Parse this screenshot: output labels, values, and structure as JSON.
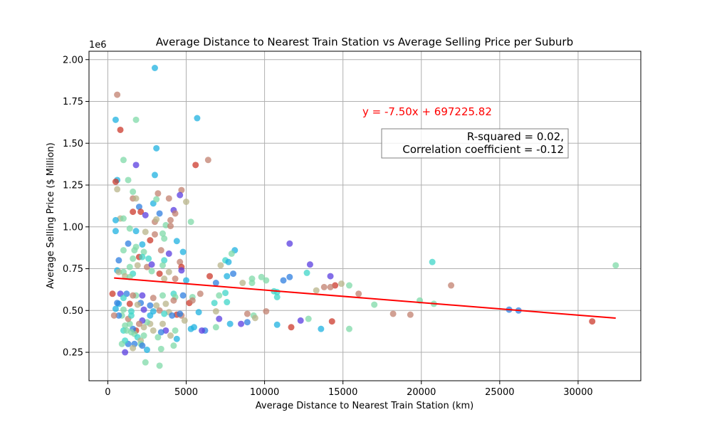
{
  "chart_data": {
    "type": "scatter",
    "title": "Average Distance to Nearest Train Station vs Average Selling Price per Suburb",
    "xlabel": "Average Distance to Nearest Train Station (km)",
    "ylabel": "Average Selling Price ($ Million)",
    "y_offset_label": "1e6",
    "xlim": [
      -1200,
      34000
    ],
    "ylim": [
      80000,
      2050000
    ],
    "x_ticks": [
      0,
      5000,
      10000,
      15000,
      20000,
      25000,
      30000
    ],
    "x_tick_labels": [
      "0",
      "5000",
      "10000",
      "15000",
      "20000",
      "25000",
      "30000"
    ],
    "y_ticks": [
      250000,
      500000,
      750000,
      1000000,
      1250000,
      1500000,
      1750000,
      2000000
    ],
    "y_tick_labels": [
      "0.25",
      "0.50",
      "0.75",
      "1.00",
      "1.25",
      "1.50",
      "1.75",
      "2.00"
    ],
    "grid": true,
    "regression": {
      "equation": "y = -7.50x + 697225.82",
      "slope": -7.5,
      "intercept": 697225.82,
      "x_range": [
        400,
        32400
      ],
      "color": "#ff0000"
    },
    "stats_box": {
      "line1": "R-squared = 0.02,",
      "line2": "Correlation coefficient = -0.12"
    },
    "palette": [
      "#5a3de0",
      "#2f7fe0",
      "#1fb2e0",
      "#3fd6c8",
      "#7fd9a8",
      "#b8b48a",
      "#c2806f",
      "#cc3a2c"
    ],
    "points": [
      [
        3000,
        1950000,
        2
      ],
      [
        600,
        1790000,
        6
      ],
      [
        500,
        1640000,
        2
      ],
      [
        1800,
        1640000,
        4
      ],
      [
        5700,
        1650000,
        2
      ],
      [
        800,
        1580000,
        7
      ],
      [
        3100,
        1470000,
        2
      ],
      [
        1000,
        1400000,
        4
      ],
      [
        6400,
        1400000,
        6
      ],
      [
        1800,
        1370000,
        0
      ],
      [
        5600,
        1370000,
        7
      ],
      [
        3000,
        1310000,
        2
      ],
      [
        600,
        1280000,
        2
      ],
      [
        500,
        1270000,
        7
      ],
      [
        1300,
        1280000,
        4
      ],
      [
        4700,
        1220000,
        6
      ],
      [
        600,
        1225000,
        5
      ],
      [
        1600,
        1210000,
        4
      ],
      [
        3200,
        1200000,
        6
      ],
      [
        4600,
        1190000,
        0
      ],
      [
        1600,
        1170000,
        6
      ],
      [
        1800,
        1170000,
        5
      ],
      [
        3900,
        1170000,
        6
      ],
      [
        5000,
        1150000,
        5
      ],
      [
        2900,
        1140000,
        2
      ],
      [
        3100,
        1165000,
        4
      ],
      [
        2000,
        1120000,
        1
      ],
      [
        1600,
        1090000,
        7
      ],
      [
        2100,
        1090000,
        7
      ],
      [
        2400,
        1070000,
        0
      ],
      [
        3300,
        1080000,
        1
      ],
      [
        4200,
        1100000,
        0
      ],
      [
        4300,
        1080000,
        6
      ],
      [
        800,
        1050000,
        5
      ],
      [
        1000,
        1050000,
        4
      ],
      [
        500,
        1040000,
        2
      ],
      [
        3000,
        1030000,
        6
      ],
      [
        3100,
        1045000,
        5
      ],
      [
        4000,
        1040000,
        6
      ],
      [
        5300,
        1030000,
        4
      ],
      [
        3700,
        1010000,
        4
      ],
      [
        4000,
        1005000,
        6
      ],
      [
        500,
        975000,
        2
      ],
      [
        1400,
        990000,
        4
      ],
      [
        1800,
        975000,
        2
      ],
      [
        2400,
        970000,
        5
      ],
      [
        3500,
        960000,
        4
      ],
      [
        3000,
        955000,
        6
      ],
      [
        4400,
        915000,
        2
      ],
      [
        2700,
        920000,
        7
      ],
      [
        3600,
        930000,
        4
      ],
      [
        1300,
        900000,
        1
      ],
      [
        2200,
        895000,
        2
      ],
      [
        1800,
        880000,
        4
      ],
      [
        1700,
        860000,
        4
      ],
      [
        2300,
        850000,
        4
      ],
      [
        3400,
        860000,
        6
      ],
      [
        3900,
        840000,
        0
      ],
      [
        4800,
        850000,
        2
      ],
      [
        8100,
        860000,
        2
      ],
      [
        11600,
        900000,
        0
      ],
      [
        1000,
        860000,
        4
      ],
      [
        700,
        800000,
        1
      ],
      [
        1600,
        810000,
        4
      ],
      [
        2000,
        820000,
        7
      ],
      [
        2200,
        820000,
        3
      ],
      [
        2600,
        810000,
        3
      ],
      [
        3600,
        800000,
        3
      ],
      [
        4600,
        790000,
        6
      ],
      [
        7500,
        800000,
        3
      ],
      [
        7700,
        790000,
        2
      ],
      [
        7900,
        840000,
        4
      ],
      [
        1400,
        760000,
        4
      ],
      [
        2500,
        760000,
        6
      ],
      [
        2800,
        775000,
        0
      ],
      [
        3300,
        720000,
        7
      ],
      [
        3500,
        770000,
        4
      ],
      [
        4700,
        760000,
        7
      ],
      [
        1900,
        770000,
        5
      ],
      [
        7200,
        770000,
        5
      ],
      [
        12900,
        775000,
        0
      ],
      [
        20700,
        790000,
        3
      ],
      [
        32400,
        770000,
        4
      ],
      [
        600,
        740000,
        2
      ],
      [
        700,
        730000,
        5
      ],
      [
        1000,
        730000,
        4
      ],
      [
        1600,
        720000,
        3
      ],
      [
        2800,
        735000,
        4
      ],
      [
        3900,
        730000,
        5
      ],
      [
        4700,
        740000,
        0
      ],
      [
        6500,
        705000,
        7
      ],
      [
        7600,
        705000,
        2
      ],
      [
        8000,
        720000,
        1
      ],
      [
        11600,
        700000,
        1
      ],
      [
        12700,
        725000,
        3
      ],
      [
        14200,
        705000,
        0
      ],
      [
        9800,
        700000,
        4
      ],
      [
        9200,
        690000,
        4
      ],
      [
        10100,
        680000,
        4
      ],
      [
        11200,
        680000,
        1
      ],
      [
        1100,
        705000,
        5
      ],
      [
        1400,
        700000,
        4
      ],
      [
        3600,
        690000,
        5
      ],
      [
        4300,
        690000,
        6
      ],
      [
        5000,
        680000,
        2
      ],
      [
        6900,
        665000,
        1
      ],
      [
        8600,
        665000,
        5
      ],
      [
        9200,
        665000,
        4
      ],
      [
        14500,
        650000,
        7
      ],
      [
        15400,
        650000,
        4
      ],
      [
        14900,
        660000,
        5
      ],
      [
        21900,
        650000,
        6
      ],
      [
        13800,
        640000,
        6
      ],
      [
        14200,
        640000,
        6
      ],
      [
        13300,
        620000,
        5
      ],
      [
        10800,
        610000,
        3
      ],
      [
        10600,
        615000,
        3
      ],
      [
        7500,
        605000,
        3
      ],
      [
        7100,
        590000,
        4
      ],
      [
        5900,
        600000,
        6
      ],
      [
        5400,
        580000,
        4
      ],
      [
        4200,
        600000,
        3
      ],
      [
        4300,
        580000,
        4
      ],
      [
        3500,
        590000,
        4
      ],
      [
        2900,
        575000,
        6
      ],
      [
        2200,
        590000,
        0
      ],
      [
        1800,
        590000,
        4
      ],
      [
        1600,
        590000,
        6
      ],
      [
        1200,
        600000,
        1
      ],
      [
        800,
        600000,
        0
      ],
      [
        300,
        600000,
        7
      ],
      [
        1000,
        575000,
        3
      ],
      [
        7600,
        550000,
        3
      ],
      [
        6800,
        545000,
        3
      ],
      [
        5200,
        545000,
        7
      ],
      [
        5400,
        560000,
        6
      ],
      [
        4800,
        590000,
        1
      ],
      [
        16000,
        600000,
        6
      ],
      [
        17000,
        535000,
        4
      ],
      [
        20800,
        540000,
        4
      ],
      [
        19900,
        560000,
        4
      ],
      [
        10800,
        580000,
        3
      ],
      [
        4200,
        560000,
        6
      ],
      [
        3700,
        540000,
        5
      ],
      [
        3100,
        530000,
        5
      ],
      [
        2700,
        530000,
        1
      ],
      [
        2100,
        545000,
        1
      ],
      [
        1900,
        535000,
        5
      ],
      [
        1400,
        540000,
        7
      ],
      [
        700,
        540000,
        2
      ],
      [
        600,
        545000,
        1
      ],
      [
        500,
        510000,
        2
      ],
      [
        1000,
        505000,
        4
      ],
      [
        1500,
        495000,
        3
      ],
      [
        2300,
        505000,
        0
      ],
      [
        2900,
        495000,
        2
      ],
      [
        3300,
        500000,
        6
      ],
      [
        3900,
        490000,
        5
      ],
      [
        4400,
        475000,
        7
      ],
      [
        4700,
        470000,
        6
      ],
      [
        5800,
        490000,
        2
      ],
      [
        6900,
        495000,
        5
      ],
      [
        8900,
        480000,
        6
      ],
      [
        9300,
        470000,
        4
      ],
      [
        10100,
        495000,
        6
      ],
      [
        18200,
        480000,
        6
      ],
      [
        19300,
        475000,
        6
      ],
      [
        25600,
        505000,
        1
      ],
      [
        26200,
        500000,
        1
      ],
      [
        30900,
        435000,
        7
      ],
      [
        12800,
        450000,
        4
      ],
      [
        14300,
        435000,
        7
      ],
      [
        13600,
        390000,
        2
      ],
      [
        15400,
        390000,
        4
      ],
      [
        11700,
        400000,
        7
      ],
      [
        10800,
        415000,
        2
      ],
      [
        12300,
        440000,
        0
      ],
      [
        9400,
        455000,
        5
      ],
      [
        8900,
        430000,
        1
      ],
      [
        8500,
        420000,
        0
      ],
      [
        7800,
        420000,
        2
      ],
      [
        7100,
        450000,
        0
      ],
      [
        6900,
        400000,
        4
      ],
      [
        6200,
        380000,
        1
      ],
      [
        6000,
        380000,
        0
      ],
      [
        5500,
        400000,
        2
      ],
      [
        5300,
        390000,
        2
      ],
      [
        4900,
        440000,
        5
      ],
      [
        4600,
        480000,
        1
      ],
      [
        4300,
        380000,
        4
      ],
      [
        4000,
        350000,
        5
      ],
      [
        3700,
        380000,
        0
      ],
      [
        3500,
        420000,
        5
      ],
      [
        3400,
        370000,
        1
      ],
      [
        3200,
        340000,
        4
      ],
      [
        2900,
        380000,
        5
      ],
      [
        2700,
        420000,
        5
      ],
      [
        2500,
        430000,
        4
      ],
      [
        2300,
        400000,
        5
      ],
      [
        2200,
        440000,
        0
      ],
      [
        2000,
        420000,
        6
      ],
      [
        1800,
        380000,
        7
      ],
      [
        1700,
        360000,
        4
      ],
      [
        1600,
        390000,
        1
      ],
      [
        1400,
        420000,
        4
      ],
      [
        1300,
        450000,
        6
      ],
      [
        1100,
        410000,
        4
      ],
      [
        900,
        470000,
        4
      ],
      [
        700,
        470000,
        1
      ],
      [
        400,
        470000,
        6
      ],
      [
        1000,
        380000,
        3
      ],
      [
        1200,
        380000,
        4
      ],
      [
        1500,
        370000,
        4
      ],
      [
        1900,
        340000,
        3
      ],
      [
        2100,
        320000,
        5
      ],
      [
        2300,
        350000,
        4
      ],
      [
        1300,
        300000,
        1
      ],
      [
        1100,
        320000,
        3
      ],
      [
        1700,
        300000,
        1
      ],
      [
        2100,
        300000,
        4
      ],
      [
        900,
        300000,
        4
      ],
      [
        2200,
        290000,
        1
      ],
      [
        1100,
        250000,
        0
      ],
      [
        1600,
        275000,
        5
      ],
      [
        2500,
        265000,
        2
      ],
      [
        3400,
        270000,
        4
      ],
      [
        4200,
        290000,
        4
      ],
      [
        4400,
        330000,
        2
      ],
      [
        2400,
        190000,
        4
      ],
      [
        3300,
        170000,
        4
      ],
      [
        3600,
        480000,
        3
      ],
      [
        4100,
        470000,
        1
      ],
      [
        2700,
        470000,
        2
      ],
      [
        1500,
        470000,
        3
      ]
    ]
  }
}
